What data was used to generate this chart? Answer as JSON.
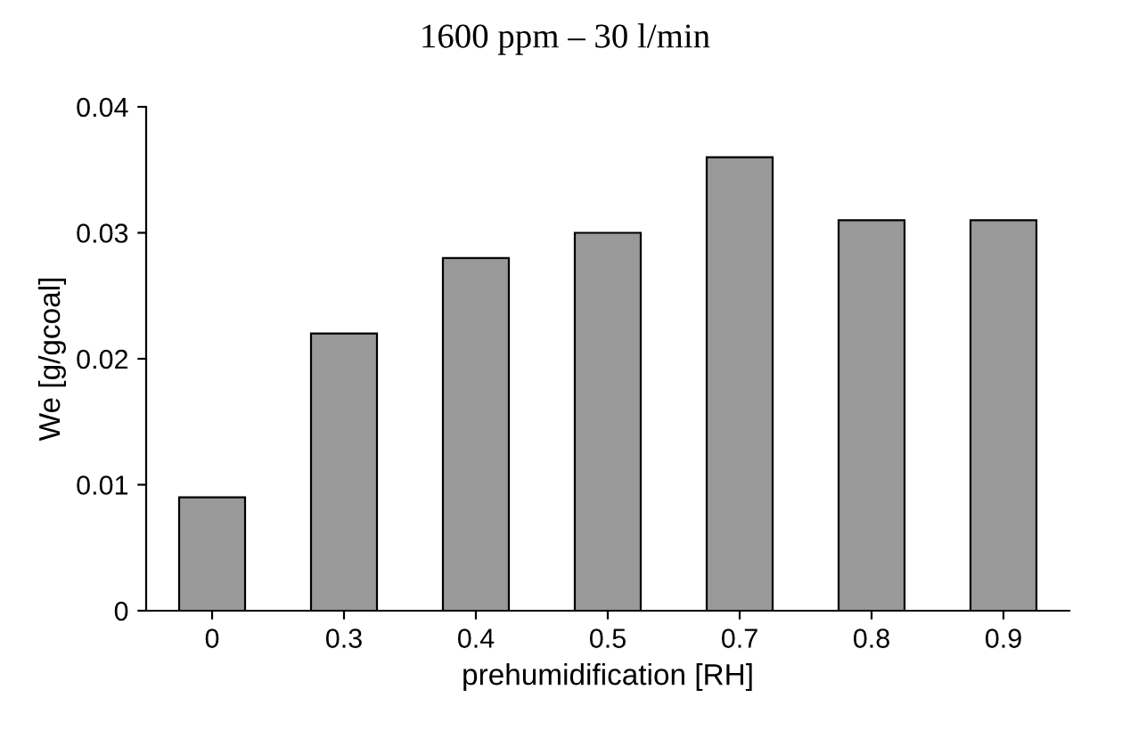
{
  "chart_data": {
    "type": "bar",
    "title": "1600 ppm – 30 l/min",
    "xlabel": "prehumidification [RH]",
    "ylabel": "We [g/gcoal]",
    "categories": [
      "0",
      "0.3",
      "0.4",
      "0.5",
      "0.7",
      "0.8",
      "0.9"
    ],
    "values": [
      0.009,
      0.022,
      0.028,
      0.03,
      0.036,
      0.031,
      0.031
    ],
    "color": "#999999",
    "ylim": [
      0,
      0.04
    ],
    "yticks": [
      {
        "value": 0,
        "label": "0"
      },
      0.01,
      0.02,
      0.03,
      0.04
    ],
    "grid": false,
    "legend": false
  }
}
